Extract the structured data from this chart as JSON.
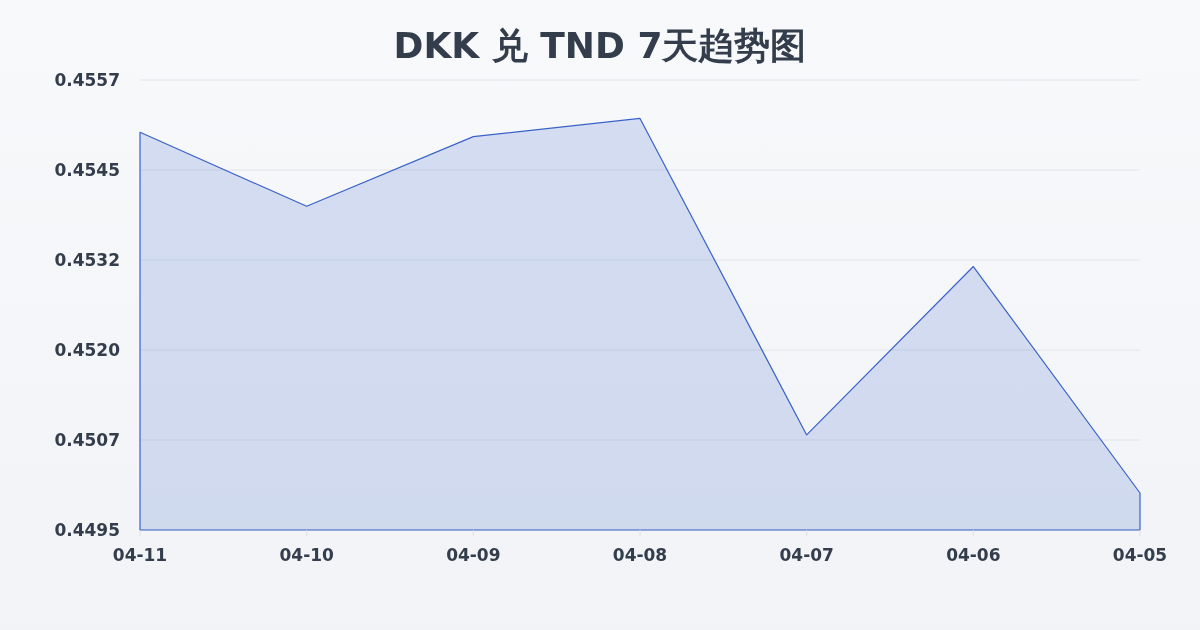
{
  "chart_data": {
    "type": "area",
    "title": "DKK 兑 TND 7天趋势图",
    "categories": [
      "04-11",
      "04-10",
      "04-09",
      "04-08",
      "04-07",
      "04-06",
      "04-05"
    ],
    "series": [
      {
        "color": "#3a62c8",
        "values": [
          0.45498,
          0.45396,
          0.45492,
          0.45517,
          0.45081,
          0.45313,
          0.45001
        ]
      }
    ],
    "ylim": [
      0.4495,
      0.4557
    ],
    "yticks": [
      0.4495,
      {
        "value": 0.45074,
        "label": "0.4507"
      },
      {
        "value": 0.45198,
        "label": "0.4520"
      },
      {
        "value": 0.45322,
        "label": "0.4532"
      },
      {
        "value": 0.45446,
        "label": "0.4545"
      },
      0.4557
    ],
    "grid": "y"
  }
}
